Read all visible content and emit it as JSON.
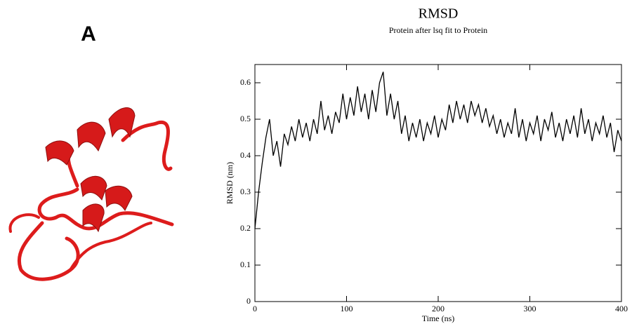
{
  "panel_label": "A",
  "chart_data": {
    "type": "line",
    "title": "RMSD",
    "subtitle": "Protein after lsq fit to Protein",
    "xlabel": "Time (ns)",
    "ylabel": "RMSD (nm)",
    "color": "#000000",
    "x": [
      0,
      4,
      8,
      12,
      16,
      20,
      24,
      28,
      32,
      36,
      40,
      44,
      48,
      52,
      56,
      60,
      64,
      68,
      72,
      76,
      80,
      84,
      88,
      92,
      96,
      100,
      104,
      108,
      112,
      116,
      120,
      124,
      128,
      132,
      136,
      140,
      144,
      148,
      152,
      156,
      160,
      164,
      168,
      172,
      176,
      180,
      184,
      188,
      192,
      196,
      200,
      204,
      208,
      212,
      216,
      220,
      224,
      228,
      232,
      236,
      240,
      244,
      248,
      252,
      256,
      260,
      264,
      268,
      272,
      276,
      280,
      284,
      288,
      292,
      296,
      300,
      304,
      308,
      312,
      316,
      320,
      324,
      328,
      332,
      336,
      340,
      344,
      348,
      352,
      356,
      360,
      364,
      368,
      372,
      376,
      380,
      384,
      388,
      392,
      396,
      400
    ],
    "values": [
      0.2,
      0.3,
      0.38,
      0.45,
      0.5,
      0.4,
      0.44,
      0.37,
      0.46,
      0.43,
      0.48,
      0.44,
      0.5,
      0.45,
      0.49,
      0.44,
      0.5,
      0.46,
      0.55,
      0.47,
      0.51,
      0.46,
      0.52,
      0.49,
      0.57,
      0.5,
      0.56,
      0.51,
      0.59,
      0.52,
      0.57,
      0.5,
      0.58,
      0.52,
      0.6,
      0.63,
      0.51,
      0.57,
      0.5,
      0.55,
      0.46,
      0.51,
      0.44,
      0.49,
      0.45,
      0.5,
      0.44,
      0.49,
      0.46,
      0.51,
      0.45,
      0.5,
      0.47,
      0.54,
      0.49,
      0.55,
      0.5,
      0.54,
      0.49,
      0.55,
      0.51,
      0.54,
      0.49,
      0.53,
      0.48,
      0.51,
      0.46,
      0.5,
      0.45,
      0.49,
      0.46,
      0.53,
      0.45,
      0.5,
      0.44,
      0.49,
      0.46,
      0.51,
      0.44,
      0.5,
      0.47,
      0.52,
      0.45,
      0.49,
      0.44,
      0.5,
      0.46,
      0.51,
      0.45,
      0.53,
      0.46,
      0.5,
      0.44,
      0.49,
      0.46,
      0.51,
      0.45,
      0.49,
      0.41,
      0.47,
      0.44
    ],
    "xlim": [
      0,
      400
    ],
    "xticks": [
      0,
      100,
      200,
      300,
      400
    ],
    "ylim": [
      0,
      0.65
    ],
    "yticks": [
      0,
      0.1,
      0.2,
      0.3,
      0.4,
      0.5,
      0.6
    ]
  }
}
